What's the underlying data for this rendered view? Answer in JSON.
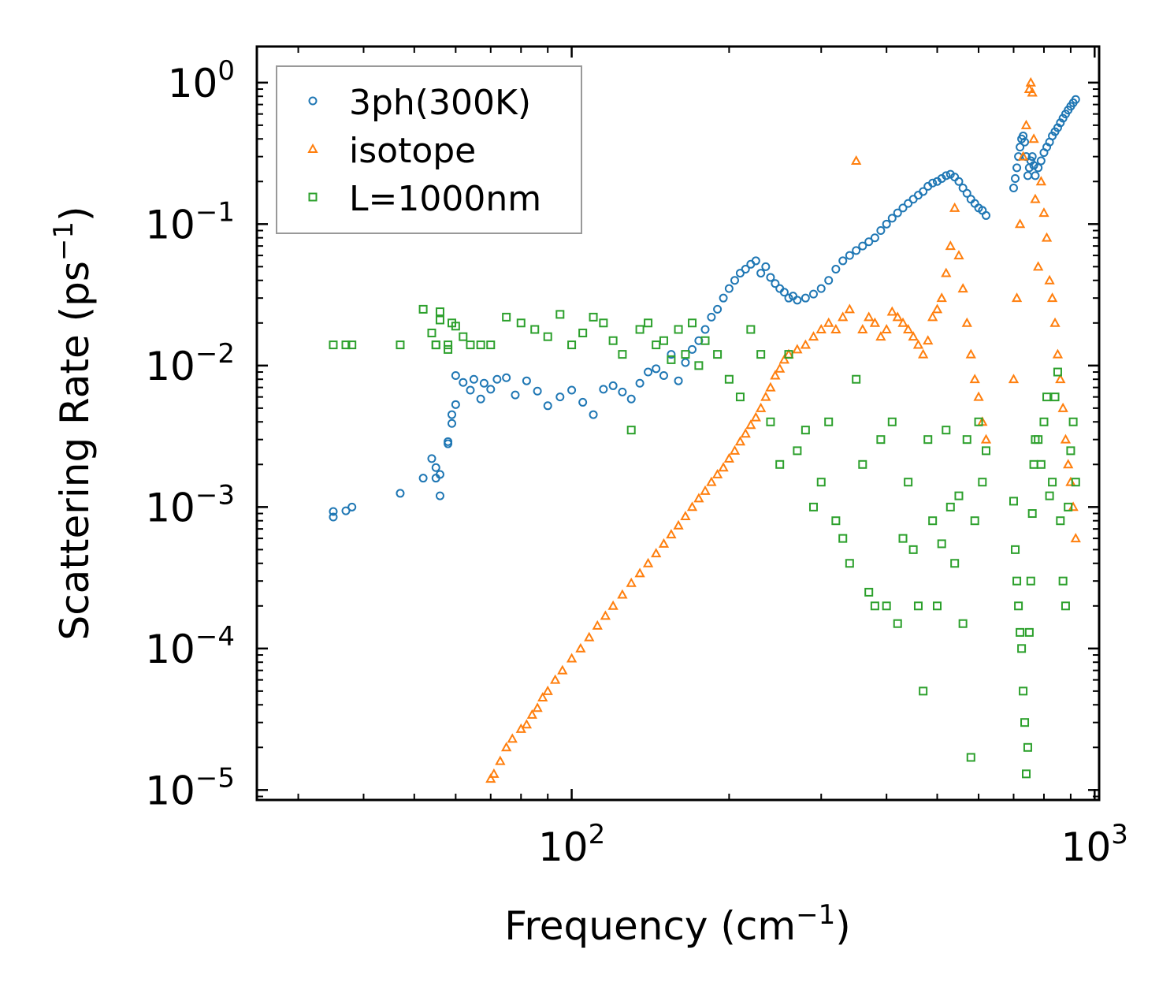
{
  "chart_data": {
    "type": "scatter",
    "title": "",
    "xlabel": "Frequency (cm",
    "xlabel_sup": "−1",
    "xlabel_end": ")",
    "ylabel": "Scattering Rate (ps",
    "ylabel_sup": "−1",
    "ylabel_end": ")",
    "xscale": "log",
    "yscale": "log",
    "xlim": [
      25,
      1020
    ],
    "ylim": [
      8.5e-06,
      1.8
    ],
    "grid": false,
    "legend_position": "top-left",
    "x_ticks": [
      {
        "value": 100,
        "base": "10",
        "exp": "2"
      },
      {
        "value": 1000,
        "base": "10",
        "exp": "3"
      }
    ],
    "y_ticks": [
      {
        "value": 1,
        "base": "10",
        "exp": "0"
      },
      {
        "value": 0.1,
        "base": "10",
        "exp": "−1"
      },
      {
        "value": 0.01,
        "base": "10",
        "exp": "−2"
      },
      {
        "value": 0.001,
        "base": "10",
        "exp": "−3"
      },
      {
        "value": 0.0001,
        "base": "10",
        "exp": "−4"
      },
      {
        "value": 1e-05,
        "base": "10",
        "exp": "−5"
      }
    ],
    "series": [
      {
        "name": "3ph(300K)",
        "marker": "circle",
        "color": "#1f77b4",
        "x": [
          35,
          35,
          37,
          38,
          47,
          52,
          54,
          55,
          55,
          56,
          56,
          58,
          58,
          59,
          59,
          60,
          60,
          62,
          64,
          65,
          67,
          68,
          70,
          72,
          75,
          78,
          82,
          86,
          90,
          95,
          100,
          105,
          110,
          115,
          120,
          125,
          130,
          135,
          140,
          145,
          150,
          155,
          160,
          165,
          170,
          175,
          180,
          185,
          190,
          195,
          200,
          205,
          210,
          215,
          220,
          225,
          230,
          235,
          240,
          245,
          250,
          255,
          260,
          265,
          270,
          280,
          290,
          300,
          310,
          320,
          330,
          340,
          350,
          360,
          370,
          380,
          390,
          400,
          410,
          420,
          430,
          440,
          450,
          460,
          470,
          480,
          490,
          500,
          510,
          520,
          530,
          540,
          550,
          560,
          570,
          580,
          590,
          600,
          610,
          620,
          700,
          705,
          710,
          715,
          720,
          725,
          730,
          735,
          740,
          745,
          750,
          755,
          760,
          765,
          770,
          780,
          790,
          800,
          810,
          820,
          830,
          840,
          850,
          860,
          870,
          880,
          890,
          900,
          910,
          920
        ],
        "y": [
          0.00085,
          0.00093,
          0.00094,
          0.001,
          0.00125,
          0.0016,
          0.0022,
          0.0016,
          0.0019,
          0.0012,
          0.0017,
          0.0029,
          0.0028,
          0.0039,
          0.0045,
          0.0053,
          0.0085,
          0.0076,
          0.0067,
          0.008,
          0.0058,
          0.0075,
          0.0068,
          0.008,
          0.0082,
          0.0062,
          0.0078,
          0.0066,
          0.0052,
          0.006,
          0.0067,
          0.0055,
          0.0045,
          0.0068,
          0.0072,
          0.0065,
          0.0058,
          0.0075,
          0.009,
          0.0095,
          0.0085,
          0.012,
          0.0078,
          0.0105,
          0.013,
          0.015,
          0.018,
          0.022,
          0.025,
          0.03,
          0.035,
          0.04,
          0.045,
          0.048,
          0.052,
          0.055,
          0.045,
          0.05,
          0.042,
          0.038,
          0.035,
          0.033,
          0.03,
          0.031,
          0.029,
          0.03,
          0.032,
          0.035,
          0.04,
          0.048,
          0.055,
          0.06,
          0.065,
          0.07,
          0.075,
          0.08,
          0.09,
          0.1,
          0.11,
          0.12,
          0.13,
          0.14,
          0.15,
          0.16,
          0.17,
          0.185,
          0.195,
          0.2,
          0.21,
          0.22,
          0.225,
          0.215,
          0.2,
          0.18,
          0.165,
          0.15,
          0.14,
          0.13,
          0.125,
          0.115,
          0.18,
          0.21,
          0.25,
          0.3,
          0.35,
          0.4,
          0.42,
          0.38,
          0.3,
          0.22,
          0.25,
          0.28,
          0.3,
          0.26,
          0.22,
          0.25,
          0.28,
          0.32,
          0.35,
          0.38,
          0.42,
          0.45,
          0.48,
          0.52,
          0.56,
          0.6,
          0.64,
          0.68,
          0.72,
          0.76
        ]
      },
      {
        "name": "isotope",
        "marker": "triangle",
        "color": "#ff7f0e",
        "x": [
          70,
          71,
          73,
          75,
          77,
          80,
          82,
          84,
          86,
          88,
          90,
          93,
          96,
          100,
          104,
          108,
          112,
          116,
          120,
          125,
          130,
          135,
          140,
          145,
          150,
          155,
          160,
          165,
          170,
          175,
          180,
          185,
          190,
          195,
          200,
          205,
          210,
          215,
          220,
          225,
          230,
          235,
          240,
          245,
          250,
          255,
          260,
          270,
          280,
          290,
          300,
          310,
          320,
          330,
          340,
          350,
          360,
          370,
          380,
          390,
          400,
          410,
          420,
          430,
          440,
          450,
          460,
          470,
          480,
          490,
          500,
          510,
          520,
          530,
          540,
          550,
          560,
          570,
          580,
          590,
          600,
          610,
          620,
          700,
          710,
          720,
          730,
          740,
          750,
          755,
          760,
          765,
          770,
          780,
          790,
          800,
          810,
          820,
          830,
          840,
          850,
          860,
          870,
          880,
          890,
          900,
          910,
          920
        ],
        "y": [
          1.2e-05,
          1.3e-05,
          1.6e-05,
          2e-05,
          2.3e-05,
          2.7e-05,
          2.9e-05,
          3.4e-05,
          3.8e-05,
          4.5e-05,
          5e-05,
          6e-05,
          7e-05,
          8.5e-05,
          0.0001,
          0.00012,
          0.000145,
          0.00017,
          0.0002,
          0.00024,
          0.00029,
          0.00034,
          0.0004,
          0.00047,
          0.00055,
          0.00064,
          0.00074,
          0.00086,
          0.001,
          0.00115,
          0.0013,
          0.0015,
          0.0017,
          0.0019,
          0.0022,
          0.0025,
          0.0029,
          0.0033,
          0.0038,
          0.0043,
          0.005,
          0.006,
          0.007,
          0.0085,
          0.0095,
          0.011,
          0.012,
          0.013,
          0.014,
          0.016,
          0.018,
          0.02,
          0.018,
          0.022,
          0.025,
          0.28,
          0.018,
          0.022,
          0.02,
          0.016,
          0.018,
          0.024,
          0.022,
          0.02,
          0.018,
          0.016,
          0.014,
          0.012,
          0.015,
          0.022,
          0.025,
          0.03,
          0.045,
          0.07,
          0.13,
          0.06,
          0.035,
          0.02,
          0.012,
          0.008,
          0.006,
          0.004,
          0.003,
          0.008,
          0.03,
          0.1,
          0.3,
          0.5,
          0.9,
          1.0,
          0.85,
          0.4,
          0.15,
          0.05,
          0.2,
          0.12,
          0.08,
          0.04,
          0.03,
          0.02,
          0.012,
          0.008,
          0.005,
          0.003,
          0.002,
          0.0015,
          0.001,
          0.0006
        ]
      },
      {
        "name": "L=1000nm",
        "marker": "square",
        "color": "#2ca02c",
        "x": [
          35,
          37,
          38,
          47,
          52,
          54,
          55,
          55,
          56,
          56,
          58,
          58,
          59,
          60,
          62,
          64,
          67,
          70,
          75,
          80,
          85,
          90,
          95,
          100,
          105,
          110,
          115,
          120,
          125,
          130,
          135,
          140,
          145,
          150,
          155,
          160,
          165,
          170,
          175,
          180,
          190,
          200,
          210,
          220,
          230,
          240,
          250,
          260,
          270,
          280,
          290,
          300,
          310,
          320,
          330,
          340,
          350,
          360,
          370,
          380,
          390,
          400,
          410,
          420,
          430,
          440,
          450,
          460,
          470,
          480,
          490,
          500,
          510,
          520,
          530,
          540,
          550,
          560,
          570,
          580,
          590,
          600,
          610,
          620,
          700,
          705,
          710,
          715,
          720,
          725,
          730,
          735,
          740,
          745,
          750,
          755,
          760,
          765,
          770,
          780,
          790,
          800,
          810,
          820,
          830,
          840,
          850,
          860,
          870,
          880,
          890,
          900,
          910,
          920
        ],
        "y": [
          0.014,
          0.014,
          0.014,
          0.014,
          0.025,
          0.017,
          0.014,
          0.014,
          0.021,
          0.024,
          0.014,
          0.013,
          0.02,
          0.019,
          0.016,
          0.014,
          0.014,
          0.014,
          0.022,
          0.02,
          0.018,
          0.016,
          0.023,
          0.014,
          0.017,
          0.022,
          0.02,
          0.015,
          0.012,
          0.0035,
          0.018,
          0.02,
          0.014,
          0.015,
          0.011,
          0.018,
          0.012,
          0.02,
          0.01,
          0.015,
          0.012,
          0.008,
          0.006,
          0.018,
          0.012,
          0.004,
          0.002,
          0.012,
          0.0025,
          0.0035,
          0.001,
          0.0015,
          0.004,
          0.0008,
          0.0006,
          0.0004,
          0.008,
          0.002,
          0.00025,
          0.0002,
          0.003,
          0.0002,
          0.004,
          0.00015,
          0.0006,
          0.0015,
          0.0005,
          0.0002,
          5e-05,
          0.003,
          0.0008,
          0.0002,
          0.00055,
          0.0035,
          0.001,
          0.0004,
          0.0012,
          0.00015,
          0.003,
          1.7e-05,
          0.0008,
          0.004,
          0.0015,
          0.0025,
          0.0011,
          0.0005,
          0.0003,
          0.0002,
          0.00013,
          0.0001,
          5e-05,
          3e-05,
          1.3e-05,
          2e-05,
          0.00013,
          0.0003,
          0.0009,
          0.002,
          0.003,
          0.003,
          0.002,
          0.004,
          0.006,
          0.0012,
          0.0015,
          0.006,
          0.009,
          0.0008,
          0.0003,
          0.0002,
          0.001,
          0.0025,
          0.004,
          0.0015
        ]
      }
    ]
  }
}
